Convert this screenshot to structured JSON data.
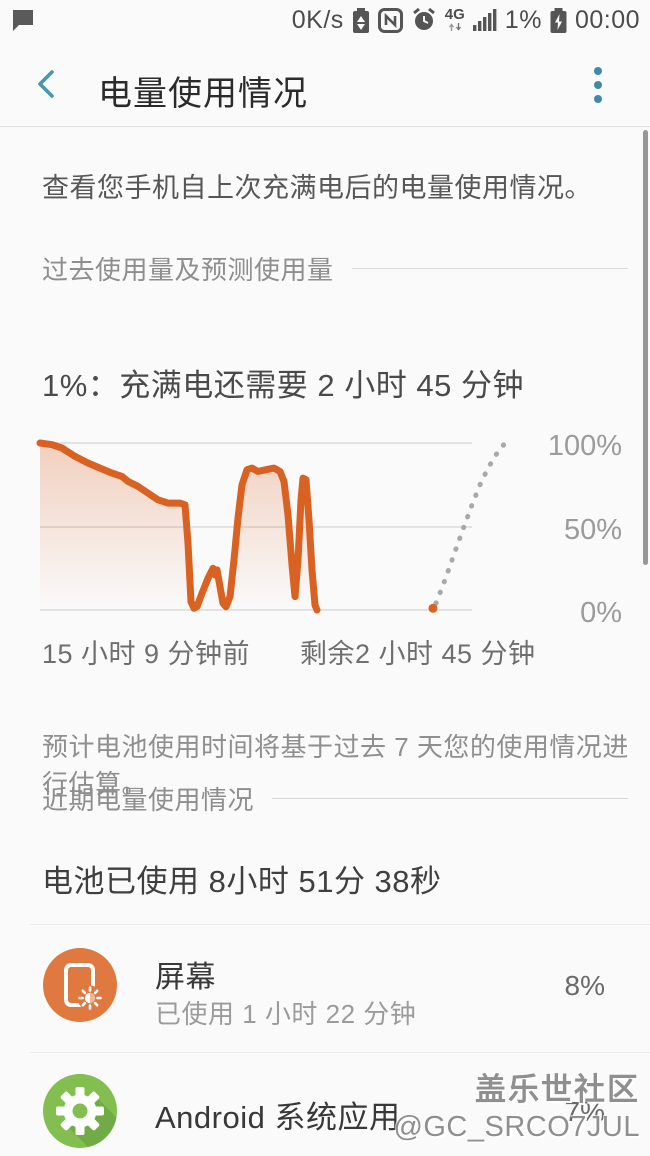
{
  "status_bar": {
    "speed": "0K/s",
    "network_label": "4G",
    "battery_percent": "1%",
    "time": "00:00",
    "left_icon": "message-bubble-icon",
    "right_icons": [
      "battery-saver-icon",
      "nfc-icon",
      "alarm-icon",
      "signal-strength-icon",
      "battery-charging-icon"
    ]
  },
  "header": {
    "title": "电量使用情况",
    "back_icon": "chevron-left-icon",
    "menu_icon": "vertical-ellipsis-icon"
  },
  "intro": {
    "text": "查看您手机自上次充满电后的电量使用情况。"
  },
  "sections": {
    "past_usage_label": "过去使用量及预测使用量",
    "recent_usage_label": "近期电量使用情况"
  },
  "forecast": {
    "headline": "1%：充满电还需要 2 小时 45 分钟",
    "estimate_note": "预计电池使用时间将基于过去 7 天您的使用情况进行估算。"
  },
  "chart_data": {
    "type": "area",
    "title": "过去使用量及预测使用量",
    "ylim": [
      0,
      100
    ],
    "yticks": [
      "100%",
      "50%",
      "0%"
    ],
    "x_axis_labels": [
      "15 小时 9 分钟前",
      "剩余2 小时 45 分钟"
    ],
    "grid": "horizontal-only",
    "legend": "none",
    "colors": {
      "history_line": "#d96222",
      "fill_top": "rgba(217,98,34,0.28)",
      "fill_bottom": "rgba(217,98,34,0)",
      "prediction_dots": "#a9a9a9",
      "gridline": "#e2e2e2"
    },
    "series": [
      {
        "name": "battery-history-percent",
        "style": "solid",
        "points": [
          [
            40,
            100
          ],
          [
            52,
            99
          ],
          [
            62,
            97
          ],
          [
            75,
            92
          ],
          [
            88,
            88
          ],
          [
            100,
            85
          ],
          [
            112,
            82
          ],
          [
            122,
            80
          ],
          [
            128,
            77
          ],
          [
            138,
            74
          ],
          [
            148,
            70
          ],
          [
            158,
            66
          ],
          [
            168,
            64
          ],
          [
            180,
            64
          ],
          [
            185,
            63
          ],
          [
            188,
            40
          ],
          [
            191,
            5
          ],
          [
            194,
            1
          ],
          [
            197,
            2
          ],
          [
            202,
            10
          ],
          [
            208,
            19
          ],
          [
            213,
            25
          ],
          [
            215,
            21
          ],
          [
            217,
            24
          ],
          [
            220,
            14
          ],
          [
            223,
            4
          ],
          [
            226,
            2
          ],
          [
            230,
            8
          ],
          [
            234,
            30
          ],
          [
            238,
            55
          ],
          [
            242,
            75
          ],
          [
            247,
            84
          ],
          [
            252,
            85
          ],
          [
            258,
            83
          ],
          [
            266,
            84
          ],
          [
            274,
            85
          ],
          [
            280,
            83
          ],
          [
            284,
            77
          ],
          [
            288,
            57
          ],
          [
            292,
            27
          ],
          [
            295,
            8
          ],
          [
            298,
            30
          ],
          [
            301,
            66
          ],
          [
            303,
            79
          ],
          [
            306,
            78
          ],
          [
            309,
            54
          ],
          [
            312,
            24
          ],
          [
            315,
            3
          ],
          [
            317,
            0
          ]
        ]
      },
      {
        "name": "charging-prediction-percent",
        "style": "dotted",
        "points": [
          [
            436,
            4
          ],
          [
            445,
            18
          ],
          [
            455,
            35
          ],
          [
            464,
            50
          ],
          [
            472,
            63
          ],
          [
            480,
            75
          ],
          [
            488,
            85
          ],
          [
            496,
            93
          ],
          [
            505,
            100
          ]
        ]
      }
    ],
    "prediction_start_dot": {
      "x": 433,
      "pct": 1
    }
  },
  "recent": {
    "battery_used_headline": "电池已使用 8小时 51分 38秒",
    "items": [
      {
        "name": "屏幕",
        "detail": "已使用 1 小时 22 分钟",
        "percent": "8%",
        "icon": "screen-brightness-icon",
        "icon_color": "#e0793f"
      },
      {
        "name": "Android 系统应用",
        "detail": "",
        "percent": "7%",
        "icon": "settings-gear-icon",
        "icon_color": "#82be50"
      }
    ]
  },
  "watermark": {
    "line1": "盖乐世社区",
    "line2": "@GC_SRCO7JUL"
  },
  "colors": {
    "accent_teal": "#3e8ca4",
    "status_icon": "#555555",
    "background": "#fafafa"
  }
}
